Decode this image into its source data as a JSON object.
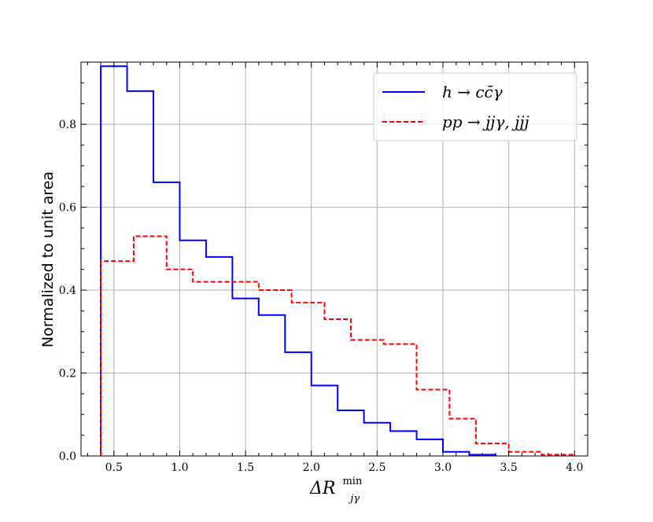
{
  "chart_data": {
    "type": "line",
    "style": "step-histogram",
    "xlabel": "ΔR",
    "xlabel_superscript": "min",
    "xlabel_subscript": "jγ",
    "ylabel": "Normalized to unit area",
    "xlim": [
      0.25,
      4.1
    ],
    "ylim": [
      0.0,
      0.95
    ],
    "xticks": [
      "0.5",
      "1.0",
      "1.5",
      "2.0",
      "2.5",
      "3.0",
      "3.5",
      "4.0"
    ],
    "yticks": [
      "0.0",
      "0.2",
      "0.4",
      "0.6",
      "0.8"
    ],
    "grid": true,
    "legend_position": "top-right",
    "series": [
      {
        "name": "h → cc̄γ",
        "color": "#0000ff",
        "line_style": "solid",
        "bin_edges": [
          0.4,
          0.6,
          0.8,
          1.0,
          1.2,
          1.4,
          1.6,
          1.8,
          2.0,
          2.2,
          2.4,
          2.6,
          2.8,
          3.0,
          3.2,
          3.4
        ],
        "values": [
          0.94,
          0.88,
          0.66,
          0.52,
          0.48,
          0.38,
          0.34,
          0.25,
          0.17,
          0.11,
          0.08,
          0.06,
          0.04,
          0.01,
          0.003
        ]
      },
      {
        "name": "pp → jjγ, jjj",
        "color": "#ff0000",
        "line_style": "dashed",
        "bin_edges": [
          0.4,
          0.65,
          0.9,
          1.1,
          1.35,
          1.6,
          1.85,
          2.1,
          2.3,
          2.55,
          2.8,
          3.05,
          3.25,
          3.5,
          3.75,
          4.0
        ],
        "values": [
          0.47,
          0.53,
          0.45,
          0.42,
          0.42,
          0.4,
          0.37,
          0.33,
          0.28,
          0.27,
          0.16,
          0.09,
          0.03,
          0.01,
          0.003
        ]
      }
    ]
  }
}
